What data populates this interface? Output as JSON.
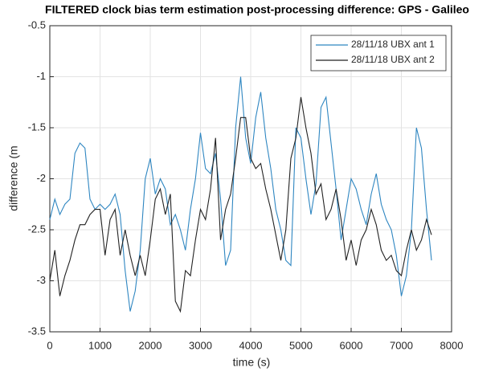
{
  "chart_data": {
    "type": "line",
    "title": "FILTERED clock bias term estimation post-processing difference: GPS - Galileo",
    "xlabel": "time (s)",
    "ylabel": "difference (m",
    "x": [
      0,
      100,
      200,
      300,
      400,
      500,
      600,
      700,
      800,
      900,
      1000,
      1100,
      1200,
      1300,
      1400,
      1500,
      1600,
      1700,
      1800,
      1900,
      2000,
      2100,
      2200,
      2300,
      2400,
      2500,
      2600,
      2700,
      2800,
      2900,
      3000,
      3100,
      3200,
      3300,
      3400,
      3500,
      3600,
      3700,
      3800,
      3900,
      4000,
      4100,
      4200,
      4300,
      4400,
      4500,
      4600,
      4700,
      4800,
      4900,
      5000,
      5100,
      5200,
      5300,
      5400,
      5500,
      5600,
      5700,
      5800,
      5900,
      6000,
      6100,
      6200,
      6300,
      6400,
      6500,
      6600,
      6700,
      6800,
      6900,
      7000,
      7100,
      7200,
      7300,
      7400,
      7500,
      7600
    ],
    "series": [
      {
        "name": "28/11/18 UBX ant 1",
        "color": "#2e86c1",
        "values": [
          -2.4,
          -2.2,
          -2.35,
          -2.25,
          -2.2,
          -1.75,
          -1.65,
          -1.7,
          -2.2,
          -2.3,
          -2.25,
          -2.3,
          -2.25,
          -2.15,
          -2.35,
          -2.9,
          -3.3,
          -3.1,
          -2.7,
          -2.0,
          -1.8,
          -2.15,
          -2.0,
          -2.1,
          -2.45,
          -2.35,
          -2.5,
          -2.7,
          -2.3,
          -2.0,
          -1.55,
          -1.9,
          -1.95,
          -1.75,
          -2.2,
          -2.85,
          -2.7,
          -1.5,
          -1.0,
          -1.6,
          -1.85,
          -1.4,
          -1.15,
          -1.6,
          -1.9,
          -2.3,
          -2.5,
          -2.8,
          -2.85,
          -1.5,
          -1.6,
          -2.0,
          -2.35,
          -2.05,
          -1.3,
          -1.2,
          -1.65,
          -2.1,
          -2.6,
          -2.3,
          -2.0,
          -2.1,
          -2.3,
          -2.45,
          -2.15,
          -1.95,
          -2.25,
          -2.4,
          -2.5,
          -2.75,
          -3.15,
          -2.95,
          -2.5,
          -1.5,
          -1.7,
          -2.3,
          -2.8
        ]
      },
      {
        "name": "28/11/18 UBX ant 2",
        "color": "#222222",
        "values": [
          -3.0,
          -2.7,
          -3.15,
          -2.95,
          -2.8,
          -2.6,
          -2.45,
          -2.45,
          -2.35,
          -2.3,
          -2.3,
          -2.75,
          -2.4,
          -2.3,
          -2.75,
          -2.5,
          -2.75,
          -2.95,
          -2.75,
          -2.95,
          -2.6,
          -2.2,
          -2.1,
          -2.35,
          -2.15,
          -3.2,
          -3.3,
          -2.9,
          -2.95,
          -2.6,
          -2.3,
          -2.4,
          -2.1,
          -1.6,
          -2.6,
          -2.3,
          -2.15,
          -1.8,
          -1.4,
          -1.4,
          -1.8,
          -1.9,
          -1.85,
          -2.1,
          -2.3,
          -2.55,
          -2.8,
          -2.5,
          -1.8,
          -1.6,
          -1.2,
          -1.5,
          -1.75,
          -2.15,
          -2.05,
          -2.4,
          -2.3,
          -2.1,
          -2.4,
          -2.8,
          -2.6,
          -2.85,
          -2.6,
          -2.5,
          -2.3,
          -2.45,
          -2.7,
          -2.8,
          -2.75,
          -2.9,
          -2.95,
          -2.7,
          -2.5,
          -2.7,
          -2.6,
          -2.4,
          -2.55
        ]
      }
    ],
    "xlim": [
      0,
      8000
    ],
    "xticks": [
      0,
      1000,
      2000,
      3000,
      4000,
      5000,
      6000,
      7000,
      8000
    ],
    "ylim": [
      -3.5,
      -0.5
    ],
    "yticks": [
      -3.5,
      -3,
      -2.5,
      -2,
      -1.5,
      -1,
      -0.5
    ],
    "grid": true,
    "legend": "top-right"
  }
}
